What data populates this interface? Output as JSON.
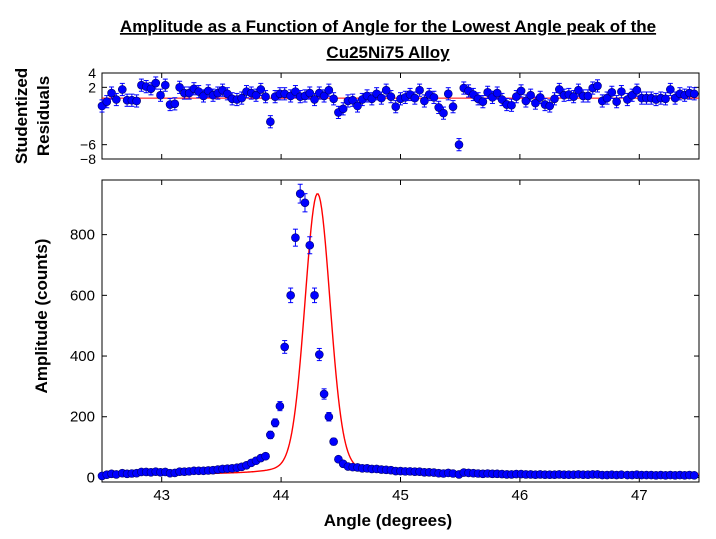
{
  "chart_data": [
    {
      "type": "scatter",
      "panel": "residuals",
      "title_line1": "Amplitude as a Function of Angle for the Lowest Angle peak of the",
      "title_line2": "Cu25Ni75 Alloy",
      "xlabel": "",
      "ylabel_line1": "Studentized",
      "ylabel_line2": "Residuals",
      "xlim": [
        42.5,
        47.5
      ],
      "ylim": [
        -8,
        4
      ],
      "yticks": [
        -8,
        -6,
        2,
        4
      ],
      "grid": false,
      "fit_line": 0.5,
      "colors": {
        "points": "#0000ff",
        "fit": "#ff0000"
      },
      "x": [
        42.5,
        42.54,
        42.58,
        42.62,
        42.67,
        42.71,
        42.75,
        42.79,
        42.83,
        42.87,
        42.91,
        42.95,
        42.99,
        43.03,
        43.07,
        43.11,
        43.15,
        43.19,
        43.23,
        43.27,
        43.31,
        43.35,
        43.39,
        43.43,
        43.47,
        43.51,
        43.55,
        43.59,
        43.63,
        43.67,
        43.71,
        43.75,
        43.79,
        43.83,
        43.87,
        43.91,
        43.95,
        43.99,
        44.03,
        44.08,
        44.12,
        44.16,
        44.2,
        44.24,
        44.28,
        44.32,
        44.36,
        44.4,
        44.44,
        44.48,
        44.52,
        44.56,
        44.6,
        44.64,
        44.68,
        44.72,
        44.76,
        44.8,
        44.84,
        44.88,
        44.92,
        44.96,
        45.0,
        45.04,
        45.08,
        45.12,
        45.16,
        45.2,
        45.24,
        45.28,
        45.32,
        45.36,
        45.4,
        45.44,
        45.49,
        45.53,
        45.57,
        45.61,
        45.65,
        45.69,
        45.73,
        45.77,
        45.81,
        45.85,
        45.89,
        45.93,
        45.97,
        46.01,
        46.05,
        46.09,
        46.13,
        46.17,
        46.21,
        46.25,
        46.29,
        46.33,
        46.37,
        46.41,
        46.45,
        46.49,
        46.53,
        46.57,
        46.61,
        46.65,
        46.69,
        46.73,
        46.77,
        46.81,
        46.85,
        46.9,
        46.94,
        46.98,
        47.02,
        47.06,
        47.1,
        47.14,
        47.18,
        47.22,
        47.26,
        47.3,
        47.34,
        47.38,
        47.42,
        47.46
      ],
      "y": [
        -0.6,
        0.0,
        1.2,
        0.3,
        1.7,
        0.2,
        0.2,
        0.1,
        2.3,
        2.1,
        1.8,
        2.6,
        0.9,
        2.3,
        -0.4,
        -0.3,
        2.0,
        1.2,
        1.2,
        1.8,
        1.4,
        0.8,
        1.5,
        0.9,
        1.2,
        1.6,
        1.1,
        0.4,
        0.3,
        0.5,
        1.4,
        1.2,
        0.9,
        1.7,
        0.7,
        -2.8,
        0.7,
        1.1,
        1.1,
        0.8,
        1.4,
        0.7,
        0.8,
        1.2,
        0.3,
        1.2,
        0.8,
        1.6,
        0.4,
        -1.5,
        -1.0,
        0.1,
        0.2,
        -0.6,
        0.3,
        0.8,
        0.4,
        1.1,
        0.5,
        1.6,
        0.7,
        -0.7,
        0.4,
        0.6,
        1.0,
        0.5,
        1.6,
        0.1,
        1.0,
        0.6,
        -0.8,
        -1.6,
        1.1,
        -0.7,
        -6.0,
        1.9,
        1.5,
        1.0,
        0.4,
        0.0,
        1.3,
        0.6,
        1.2,
        0.3,
        -0.4,
        -0.5,
        0.7,
        1.5,
        0.1,
        0.9,
        -0.2,
        0.6,
        -0.4,
        -0.6,
        0.4,
        1.7,
        0.9,
        1.0,
        0.7,
        1.6,
        0.8,
        0.8,
        1.9,
        2.2,
        0.1,
        0.5,
        1.3,
        0.0,
        1.4,
        0.3,
        0.9,
        1.6,
        0.5,
        0.5,
        0.5,
        0.3,
        0.5,
        0.4,
        1.7,
        0.5,
        1.1,
        0.9,
        1.2,
        1.1
      ],
      "errors": 0.85
    },
    {
      "type": "scatter",
      "panel": "amplitude",
      "title": "",
      "xlabel": "Angle (degrees)",
      "ylabel": "Amplitude (counts)",
      "xlim": [
        42.5,
        47.5
      ],
      "ylim": [
        -15,
        980
      ],
      "xticks": [
        43,
        44,
        45,
        46,
        47
      ],
      "yticks": [
        0,
        200,
        400,
        600,
        800
      ],
      "grid": false,
      "colors": {
        "points": "#0000ff",
        "fit": "#ff0000"
      },
      "x": [
        42.5,
        42.54,
        42.58,
        42.62,
        42.67,
        42.71,
        42.75,
        42.79,
        42.83,
        42.87,
        42.91,
        42.95,
        42.99,
        43.03,
        43.07,
        43.11,
        43.15,
        43.19,
        43.23,
        43.27,
        43.31,
        43.35,
        43.39,
        43.43,
        43.47,
        43.51,
        43.55,
        43.59,
        43.63,
        43.67,
        43.71,
        43.75,
        43.79,
        43.83,
        43.87,
        43.91,
        43.95,
        43.99,
        44.03,
        44.08,
        44.12,
        44.16,
        44.2,
        44.24,
        44.28,
        44.32,
        44.36,
        44.4,
        44.44,
        44.48,
        44.52,
        44.56,
        44.6,
        44.64,
        44.68,
        44.72,
        44.76,
        44.8,
        44.84,
        44.88,
        44.92,
        44.96,
        45.0,
        45.04,
        45.08,
        45.12,
        45.16,
        45.2,
        45.24,
        45.28,
        45.32,
        45.36,
        45.4,
        45.44,
        45.49,
        45.53,
        45.57,
        45.61,
        45.65,
        45.69,
        45.73,
        45.77,
        45.81,
        45.85,
        45.89,
        45.93,
        45.97,
        46.01,
        46.05,
        46.09,
        46.13,
        46.17,
        46.21,
        46.25,
        46.29,
        46.33,
        46.37,
        46.41,
        46.45,
        46.49,
        46.53,
        46.57,
        46.61,
        46.65,
        46.69,
        46.73,
        46.77,
        46.81,
        46.85,
        46.9,
        46.94,
        46.98,
        47.02,
        47.06,
        47.1,
        47.14,
        47.18,
        47.22,
        47.26,
        47.3,
        47.34,
        47.38,
        47.42,
        47.46
      ],
      "y": [
        5,
        9,
        12,
        10,
        14,
        12,
        13,
        14,
        18,
        18,
        17,
        19,
        17,
        18,
        14,
        15,
        19,
        19,
        20,
        22,
        22,
        22,
        23,
        24,
        26,
        28,
        29,
        30,
        32,
        35,
        40,
        48,
        55,
        64,
        70,
        140,
        180,
        235,
        430,
        600,
        790,
        935,
        905,
        765,
        600,
        405,
        275,
        200,
        118,
        60,
        45,
        36,
        34,
        33,
        30,
        30,
        28,
        28,
        26,
        25,
        24,
        21,
        21,
        20,
        20,
        19,
        19,
        17,
        17,
        16,
        14,
        13,
        15,
        13,
        10,
        16,
        15,
        14,
        13,
        12,
        13,
        12,
        12,
        11,
        10,
        10,
        11,
        11,
        10,
        10,
        9,
        10,
        9,
        9,
        9,
        10,
        9,
        9,
        9,
        10,
        9,
        9,
        10,
        10,
        8,
        8,
        9,
        8,
        9,
        8,
        8,
        9,
        8,
        8,
        8,
        7,
        8,
        7,
        8,
        7,
        8,
        7,
        8,
        7
      ],
      "errors": [
        2,
        3,
        3,
        3,
        4,
        3,
        4,
        4,
        4,
        4,
        4,
        4,
        4,
        4,
        4,
        4,
        4,
        4,
        4,
        5,
        5,
        5,
        5,
        5,
        5,
        5,
        5,
        5,
        6,
        6,
        6,
        7,
        7,
        8,
        8,
        12,
        13,
        15,
        21,
        24,
        28,
        31,
        30,
        28,
        24,
        20,
        17,
        14,
        11,
        8,
        7,
        6,
        6,
        6,
        5,
        5,
        5,
        5,
        5,
        5,
        5,
        5,
        5,
        4,
        4,
        4,
        4,
        4,
        4,
        4,
        4,
        4,
        4,
        4,
        3,
        4,
        4,
        4,
        4,
        3,
        4,
        3,
        3,
        3,
        3,
        3,
        3,
        3,
        3,
        3,
        3,
        3,
        3,
        3,
        3,
        3,
        3,
        3,
        3,
        3,
        3,
        3,
        3,
        3,
        3,
        3,
        3,
        3,
        3,
        3,
        3,
        3,
        3,
        3,
        3,
        3,
        3,
        3,
        3,
        3,
        3,
        3,
        3,
        3
      ],
      "fit": {
        "model": "pseudo-voigt plus background",
        "center": 44.305,
        "amplitude": 925,
        "sigma": 0.105,
        "background": 10
      }
    }
  ]
}
